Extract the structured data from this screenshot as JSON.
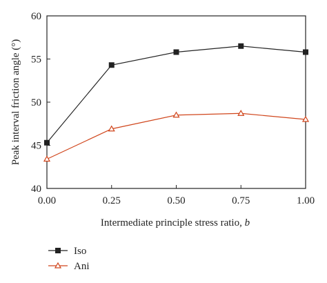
{
  "chart_data": {
    "type": "line",
    "title": "",
    "xlabel": "Intermediate principle stress ratio, ",
    "xlabel_italic": "b",
    "ylabel": "Peak interval friction angle (°)",
    "xlim": [
      0,
      1
    ],
    "ylim": [
      40,
      60
    ],
    "x": [
      0,
      0.25,
      0.5,
      0.75,
      1.0
    ],
    "xticks": [
      "0.00",
      "0.25",
      "0.50",
      "0.75",
      "1.00"
    ],
    "yticks": [
      "40",
      "45",
      "50",
      "55",
      "60"
    ],
    "grid": false,
    "legend_position": "below-left",
    "series": [
      {
        "name": "Iso",
        "values": [
          45.3,
          54.3,
          55.8,
          56.5,
          55.8
        ],
        "color": "#222222",
        "marker": "filled-square"
      },
      {
        "name": "Ani",
        "values": [
          43.4,
          46.9,
          48.5,
          48.7,
          48.0
        ],
        "color": "#d0451b",
        "marker": "open-triangle"
      }
    ]
  }
}
